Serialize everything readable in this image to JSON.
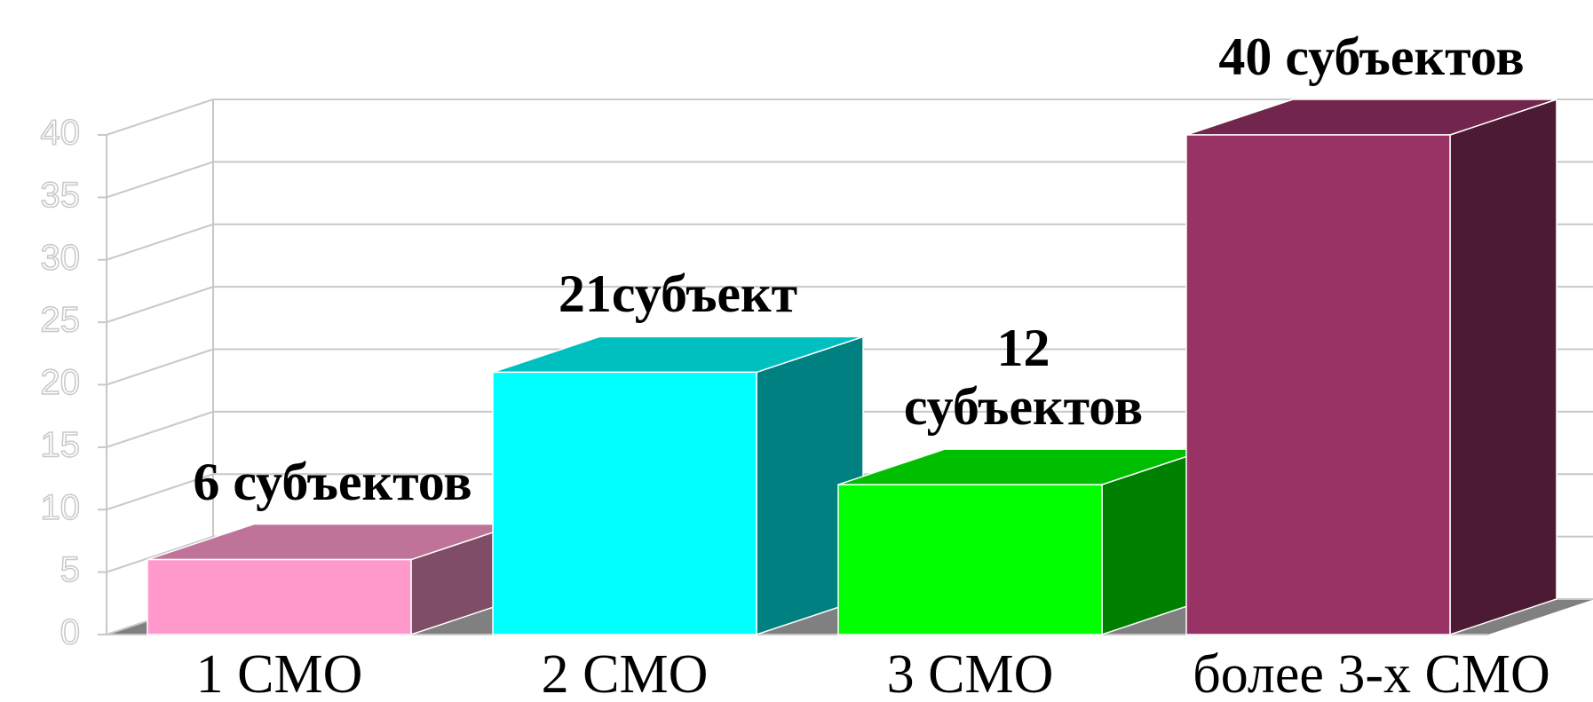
{
  "chart_data": {
    "type": "bar3d",
    "categories": [
      "1 СМО",
      "2 СМО",
      "3 СМО",
      "более 3-х СМО"
    ],
    "values": [
      6,
      21,
      12,
      40
    ],
    "value_labels": [
      "6 субъектов",
      "21субъект",
      "12 субъектов",
      "40 субъектов"
    ],
    "colors": [
      "#ff99cc",
      "#00ffff",
      "#00ff00",
      "#993366"
    ],
    "ylim": [
      0,
      40
    ],
    "yticks": [
      0,
      5,
      10,
      15,
      20,
      25,
      30,
      35,
      40
    ],
    "grid": true
  }
}
